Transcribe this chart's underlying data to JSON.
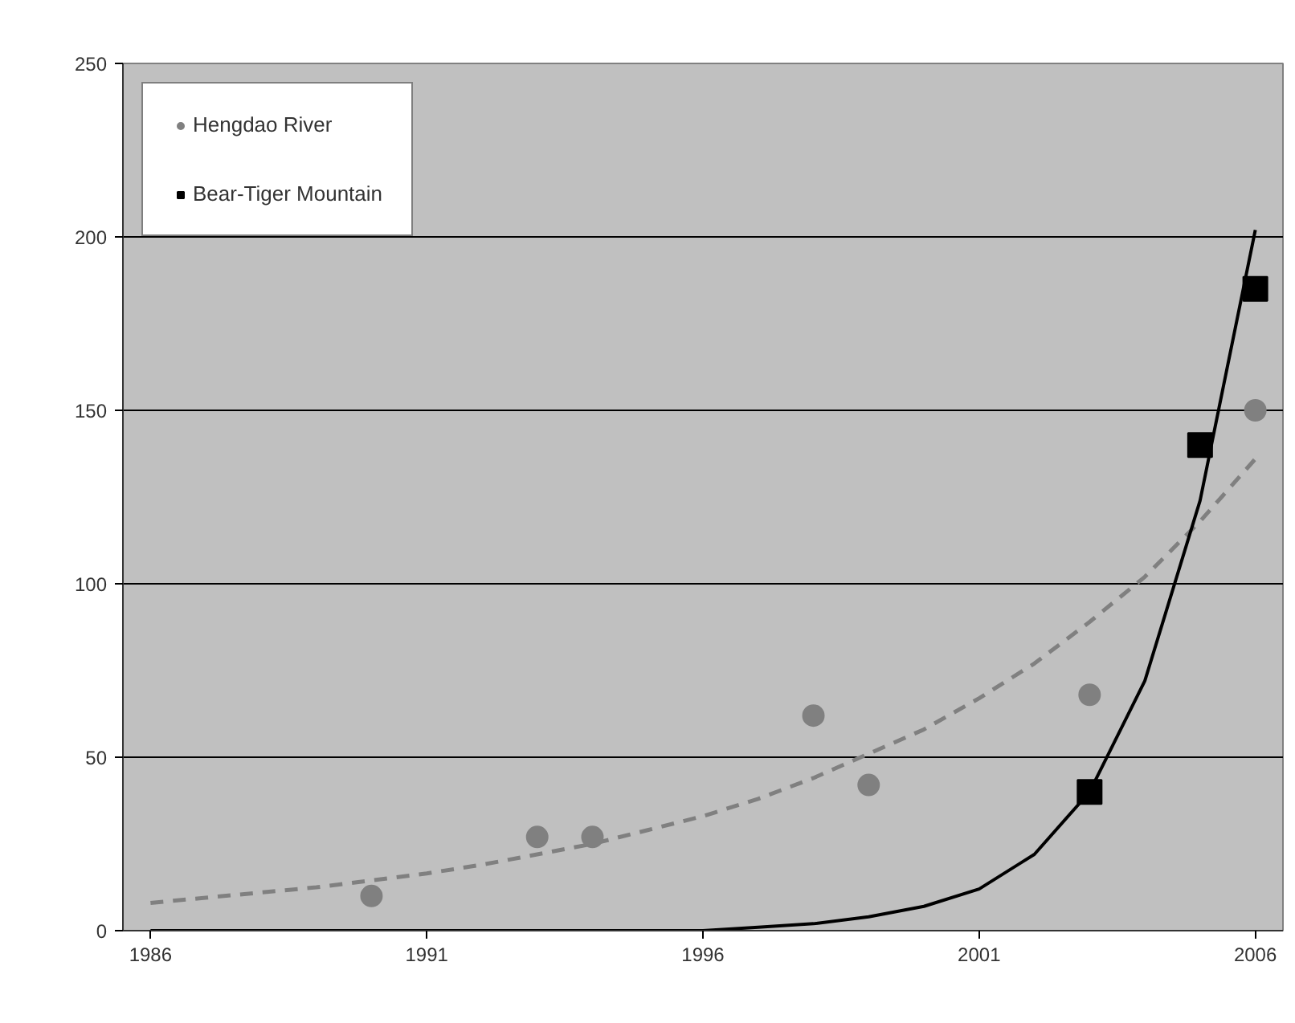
{
  "chart_data": {
    "type": "scatter",
    "xlim": [
      1985.5,
      2006.5
    ],
    "xticks": [
      1986,
      1991,
      1996,
      2001,
      2006
    ],
    "ylim": [
      0,
      250
    ],
    "yticks": [
      0,
      50,
      100,
      150,
      200,
      250
    ],
    "grid": "y",
    "legend": "top left",
    "series": [
      {
        "name": "Hengdao River",
        "marker": "circle",
        "color": "#808080",
        "x": [
          1990,
          1993,
          1994,
          1998,
          1999,
          2003,
          2006
        ],
        "values": [
          10,
          27,
          27,
          62,
          42,
          68,
          150
        ]
      },
      {
        "name": "Bear-Tiger Mountain",
        "marker": "square",
        "color": "#000000",
        "x": [
          2003,
          2005,
          2006
        ],
        "values": [
          40,
          140,
          185
        ]
      },
      {
        "type": "line",
        "line_style": "dashed",
        "color": "#808080",
        "x": [
          1986,
          1987,
          1988,
          1989,
          1990,
          1991,
          1992,
          1993,
          1994,
          1995,
          1996,
          1997,
          1998,
          1999,
          2000,
          2001,
          2002,
          2003,
          2004,
          2005,
          2006
        ],
        "values": [
          8,
          9.5,
          11,
          12.5,
          14.5,
          16.5,
          19,
          22,
          25,
          29,
          33,
          38,
          44,
          51,
          58,
          67,
          77,
          89,
          102,
          118,
          136
        ]
      },
      {
        "type": "line",
        "line_style": "solid",
        "color": "#000000",
        "x": [
          1986,
          1987,
          1988,
          1989,
          1990,
          1991,
          1992,
          1993,
          1994,
          1995,
          1996,
          1997,
          1998,
          1999,
          2000,
          2001,
          2002,
          2003,
          2004,
          2005,
          2006
        ],
        "values": [
          0,
          0,
          0,
          0,
          0,
          0,
          0,
          0,
          0,
          0,
          0,
          1,
          2,
          4,
          7,
          12,
          22,
          40,
          72,
          124,
          202
        ]
      }
    ]
  }
}
